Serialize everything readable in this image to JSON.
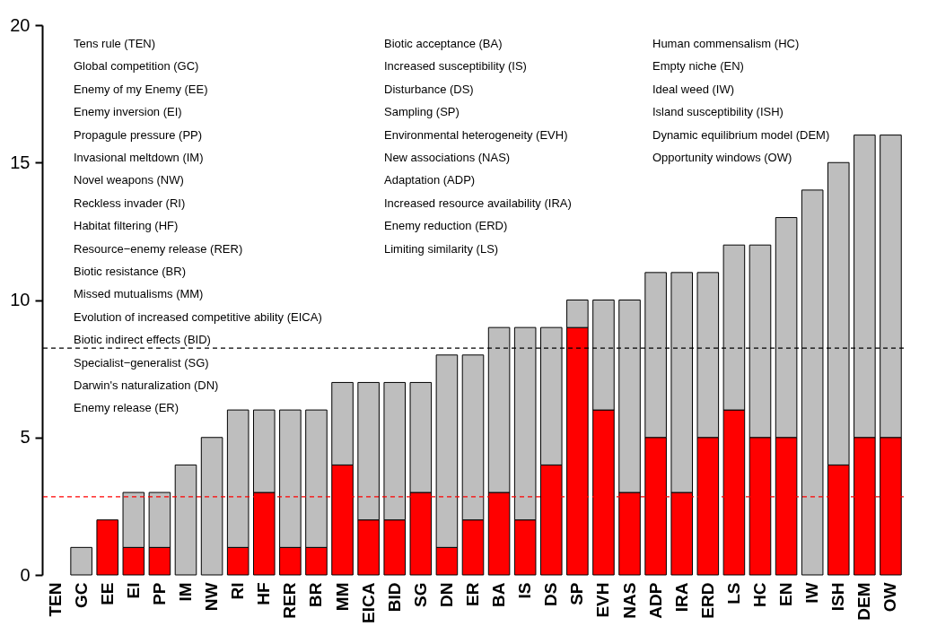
{
  "chart_data": {
    "type": "bar",
    "stacked": true,
    "categories": [
      "TEN",
      "GC",
      "EE",
      "EI",
      "PP",
      "IM",
      "NW",
      "RI",
      "HF",
      "RER",
      "BR",
      "MM",
      "EICA",
      "BID",
      "SG",
      "DN",
      "ER",
      "BA",
      "IS",
      "DS",
      "SP",
      "EVH",
      "NAS",
      "ADP",
      "IRA",
      "ERD",
      "LS",
      "HC",
      "EN",
      "IW",
      "ISH",
      "DEM",
      "OW"
    ],
    "series": [
      {
        "color": "#ff0000",
        "values": [
          0,
          0,
          2,
          1,
          1,
          0,
          0,
          1,
          3,
          1,
          1,
          4,
          2,
          2,
          3,
          1,
          2,
          3,
          2,
          4,
          9,
          6,
          3,
          5,
          3,
          5,
          6,
          5,
          5,
          0,
          4,
          5,
          5
        ]
      },
      {
        "color": "#bebebe",
        "values": [
          0,
          1,
          0,
          2,
          2,
          4,
          5,
          5,
          3,
          5,
          5,
          3,
          5,
          5,
          4,
          7,
          6,
          6,
          7,
          5,
          1,
          4,
          7,
          6,
          8,
          6,
          6,
          7,
          8,
          14,
          11,
          11,
          11
        ]
      }
    ],
    "ylim": [
      0,
      20
    ],
    "yticks": [
      0,
      5,
      10,
      15,
      20
    ],
    "ref_lines": [
      {
        "axis": "y",
        "value": 8.25,
        "color": "#000000",
        "line_style": "dashed"
      },
      {
        "axis": "y",
        "value": 2.84,
        "color": "#ff0000",
        "line_style": "dashed"
      }
    ],
    "annotations": [
      "Tens rule (TEN)",
      "Global competition (GC)",
      "Enemy of my Enemy (EE)",
      "Enemy inversion (EI)",
      "Propagule pressure (PP)",
      "Invasional meltdown (IM)",
      "Novel weapons (NW)",
      "Reckless invader (RI)",
      "Habitat filtering (HF)",
      "Resource−enemy release (RER)",
      "Biotic resistance (BR)",
      "Missed mutualisms (MM)",
      "Evolution of increased competitive ability (EICA)",
      "Biotic indirect effects (BID)",
      "Specialist−generalist (SG)",
      "Darwin's naturalization (DN)",
      "Enemy release (ER)",
      "Biotic acceptance (BA)",
      "Increased susceptibility (IS)",
      "Disturbance (DS)",
      "Sampling (SP)",
      "Environmental heterogeneity (EVH)",
      "New associations (NAS)",
      "Adaptation (ADP)",
      "Increased resource availability (IRA)",
      "Enemy reduction (ERD)",
      "Limiting similarity (LS)",
      "Human commensalism (HC)",
      "Empty niche (EN)",
      "Ideal weed (IW)",
      "Island susceptibility (ISH)",
      "Dynamic equilibrium model (DEM)",
      "Opportunity windows (OW)"
    ]
  }
}
